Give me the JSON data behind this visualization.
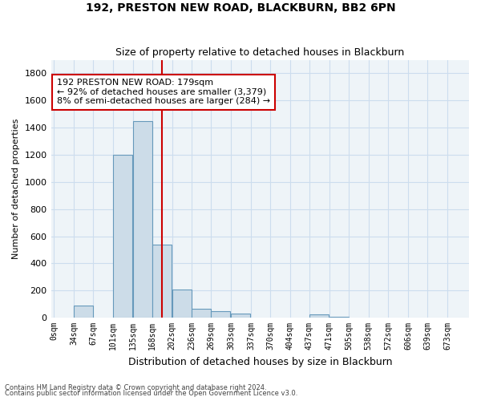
{
  "title1": "192, PRESTON NEW ROAD, BLACKBURN, BB2 6PN",
  "title2": "Size of property relative to detached houses in Blackburn",
  "xlabel": "Distribution of detached houses by size in Blackburn",
  "ylabel": "Number of detached properties",
  "footer1": "Contains HM Land Registry data © Crown copyright and database right 2024.",
  "footer2": "Contains public sector information licensed under the Open Government Licence v3.0.",
  "bin_labels": [
    "0sqm",
    "34sqm",
    "67sqm",
    "101sqm",
    "135sqm",
    "168sqm",
    "202sqm",
    "236sqm",
    "269sqm",
    "303sqm",
    "337sqm",
    "370sqm",
    "404sqm",
    "437sqm",
    "471sqm",
    "505sqm",
    "538sqm",
    "572sqm",
    "606sqm",
    "639sqm",
    "673sqm"
  ],
  "bin_starts": [
    0,
    34,
    67,
    101,
    135,
    168,
    202,
    236,
    269,
    303,
    337,
    370,
    404,
    437,
    471,
    505,
    538,
    572,
    606,
    639,
    673
  ],
  "bar_values": [
    0,
    90,
    0,
    1200,
    1450,
    540,
    210,
    65,
    45,
    30,
    0,
    0,
    0,
    25,
    5,
    0,
    0,
    0,
    0,
    0,
    0
  ],
  "bar_color": "#ccdce8",
  "bar_edge_color": "#6699bb",
  "vline_x": 185,
  "vline_color": "#cc0000",
  "ylim": [
    0,
    1900
  ],
  "yticks": [
    0,
    200,
    400,
    600,
    800,
    1000,
    1200,
    1400,
    1600,
    1800
  ],
  "annotation_text": "192 PRESTON NEW ROAD: 179sqm\n← 92% of detached houses are smaller (3,379)\n8% of semi-detached houses are larger (284) →",
  "annotation_box_facecolor": "#ffffff",
  "annotation_box_edgecolor": "#cc0000",
  "bin_width": 33,
  "grid_color": "#ccddee",
  "bg_color": "#eef4f8"
}
